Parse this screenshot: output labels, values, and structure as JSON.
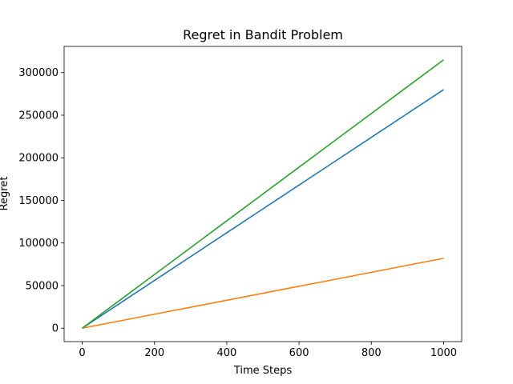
{
  "chart_data": {
    "type": "line",
    "title": "Regret in Bandit Problem",
    "xlabel": "Time Steps",
    "ylabel": "Regret",
    "xlim": [
      -50,
      1050
    ],
    "ylim": [
      -15750,
      330750
    ],
    "xticks": [
      0,
      200,
      400,
      600,
      800,
      1000
    ],
    "yticks": [
      0,
      50000,
      100000,
      150000,
      200000,
      250000,
      300000
    ],
    "grid": false,
    "legend": "none",
    "series": [
      {
        "color": "#1f77b4",
        "points": [
          [
            0,
            0
          ],
          [
            100,
            28000
          ],
          [
            200,
            56000
          ],
          [
            300,
            84000
          ],
          [
            400,
            112000
          ],
          [
            500,
            140000
          ],
          [
            600,
            168000
          ],
          [
            700,
            196000
          ],
          [
            800,
            224000
          ],
          [
            900,
            252000
          ],
          [
            1000,
            280000
          ]
        ]
      },
      {
        "color": "#ff7f0e",
        "points": [
          [
            0,
            0
          ],
          [
            100,
            8200
          ],
          [
            200,
            16400
          ],
          [
            300,
            24600
          ],
          [
            400,
            32800
          ],
          [
            500,
            41000
          ],
          [
            600,
            49200
          ],
          [
            700,
            57400
          ],
          [
            800,
            65600
          ],
          [
            900,
            73800
          ],
          [
            1000,
            82000
          ]
        ]
      },
      {
        "color": "#2ca02c",
        "points": [
          [
            0,
            0
          ],
          [
            100,
            31500
          ],
          [
            200,
            63000
          ],
          [
            300,
            94500
          ],
          [
            400,
            126000
          ],
          [
            500,
            157500
          ],
          [
            600,
            189000
          ],
          [
            700,
            220500
          ],
          [
            800,
            252000
          ],
          [
            900,
            283500
          ],
          [
            1000,
            315000
          ]
        ]
      }
    ]
  }
}
